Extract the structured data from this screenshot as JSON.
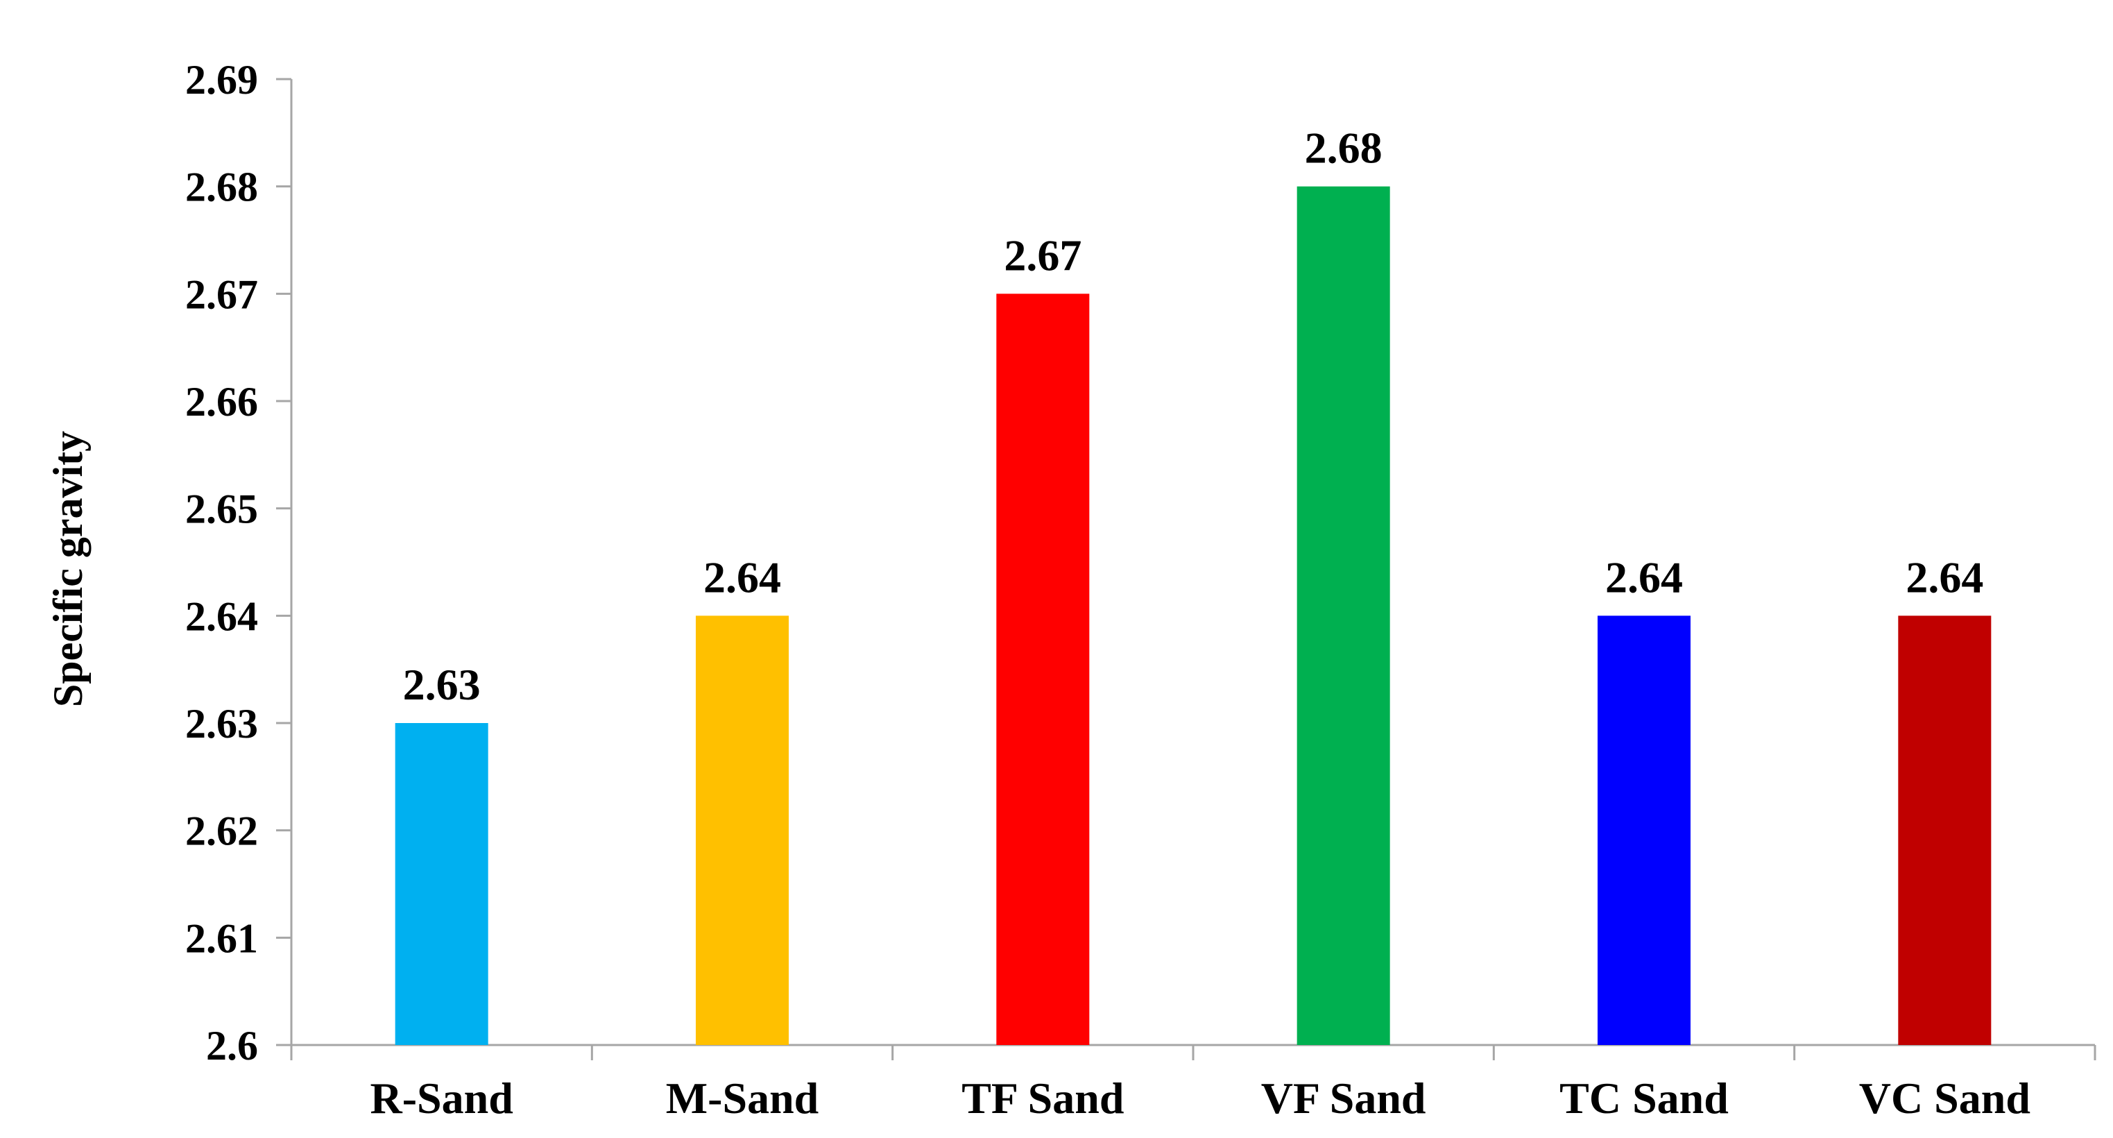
{
  "chart_data": {
    "type": "bar",
    "title": "",
    "xlabel": "",
    "ylabel": "Specific gravity",
    "ylim": [
      2.6,
      2.69
    ],
    "yticks": [
      "2.6",
      "2.61",
      "2.62",
      "2.63",
      "2.64",
      "2.65",
      "2.66",
      "2.67",
      "2.68",
      "2.69"
    ],
    "categories": [
      "R-Sand",
      "M-Sand",
      "TF Sand",
      "VF Sand",
      "TC Sand",
      "VC Sand"
    ],
    "values": [
      2.63,
      2.64,
      2.67,
      2.68,
      2.64,
      2.64
    ],
    "data_labels": [
      "2.63",
      "2.64",
      "2.67",
      "2.68",
      "2.64",
      "2.64"
    ],
    "colors": [
      "#00B0F0",
      "#FFC000",
      "#FF0000",
      "#00B050",
      "#0000FF",
      "#C00000"
    ],
    "axis_color": "#a6a6a6",
    "grid": false,
    "legend": "none"
  }
}
